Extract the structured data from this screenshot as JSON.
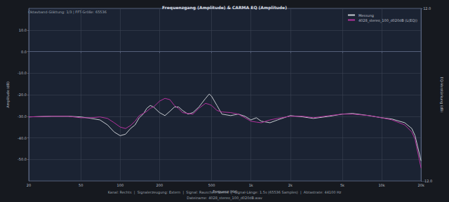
{
  "chart_data": {
    "type": "line",
    "title": "Frequenzgang (Amplitude) & CARMA EQ (Amplitude)",
    "x_label": "Frequenz (Hz)",
    "y_label": "Amplitude (dB)",
    "y2_label": "EQ-Verstärkung (dB)",
    "annotations": [
      "Oktavband-Glättung: 1/3 | FFT-Größe: 65536",
      "Kanal: Rechts  |  Signalerzeugung: Extern  |  Signal: Rauschen Stereo  |  Signal-Länge: 1.5s (65536 Samples)  |  Abtastrate: 44100 Hz",
      "Dateiname: 4028_stereo_100_d020dB.wav"
    ],
    "log": "x",
    "grid": true,
    "legend": "upper right",
    "xlim": [
      20,
      20000
    ],
    "xticks": [
      20,
      50,
      100,
      200,
      500,
      {
        "value": 1000,
        "label": "1k"
      },
      {
        "value": 2000,
        "label": "2k"
      },
      {
        "value": 5000,
        "label": "5k"
      },
      {
        "value": 10000,
        "label": "10k"
      },
      {
        "value": 20000,
        "label": "20k"
      }
    ],
    "ylim": [
      -60,
      20
    ],
    "yticks": [
      {
        "value": -50,
        "label": "-50.0"
      },
      {
        "value": -40,
        "label": "-40.0"
      },
      {
        "value": -30,
        "label": "-30.0"
      },
      {
        "value": -20,
        "label": "-20.0"
      },
      {
        "value": -10,
        "label": "-10.0"
      },
      {
        "value": 0,
        "label": "0.0"
      },
      {
        "value": 10,
        "label": "10.0"
      }
    ],
    "y2lim": [
      -12,
      12
    ],
    "y2ticks": [
      {
        "value": -12,
        "label": "-12.0"
      },
      {
        "value": 12,
        "label": "12.0"
      }
    ],
    "x": [
      20,
      30,
      40,
      50,
      60,
      70,
      80,
      90,
      100,
      110,
      120,
      130,
      140,
      150,
      160,
      170,
      180,
      200,
      220,
      240,
      260,
      280,
      300,
      330,
      360,
      400,
      450,
      480,
      500,
      550,
      600,
      700,
      800,
      900,
      1000,
      1100,
      1200,
      1400,
      1600,
      2000,
      2500,
      3000,
      4000,
      5000,
      6000,
      8000,
      10000,
      12000,
      15000,
      17000,
      18000,
      20000
    ],
    "series": [
      {
        "name": "Messung",
        "color": "#c8ccd2",
        "values": [
          -30.3,
          -30,
          -30,
          -30.3,
          -31,
          -31.7,
          -34,
          -37.3,
          -39,
          -38.3,
          -35.7,
          -34,
          -30.7,
          -29,
          -26.3,
          -25,
          -25.7,
          -28.3,
          -29.7,
          -27.7,
          -25.7,
          -25.7,
          -27.3,
          -29,
          -28.3,
          -25.7,
          -21.7,
          -19.7,
          -20.7,
          -25,
          -29,
          -29.7,
          -29,
          -30,
          -31.7,
          -30.7,
          -32.3,
          -33,
          -31.7,
          -29.7,
          -30.3,
          -31,
          -30,
          -29,
          -28.7,
          -29.7,
          -30.7,
          -31.3,
          -33,
          -35.7,
          -39,
          -50.7
        ]
      },
      {
        "name": "4028_stereo_100_d020dB (L(EQ))",
        "color": "#b4329e",
        "values": [
          -30.3,
          -30,
          -30,
          -30.7,
          -30.7,
          -30.3,
          -31,
          -33,
          -35,
          -35.7,
          -34.3,
          -32.3,
          -29.7,
          -28.7,
          -27.7,
          -26.3,
          -25.7,
          -23,
          -21.7,
          -22.3,
          -25,
          -26.5,
          -28.3,
          -28.7,
          -29,
          -26.3,
          -24,
          -24.5,
          -25,
          -27.3,
          -28,
          -28.3,
          -29,
          -30.7,
          -32.3,
          -32.7,
          -33,
          -31.7,
          -31,
          -30,
          -30,
          -30.7,
          -29.7,
          -29,
          -29,
          -29.7,
          -30.7,
          -31.7,
          -34,
          -37.3,
          -40.7,
          -54
        ]
      }
    ]
  }
}
